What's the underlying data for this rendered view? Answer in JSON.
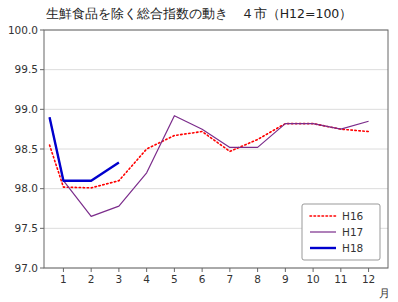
{
  "chart_data": {
    "type": "line",
    "title": "生鮮食品を除く総合指数の動き　４市（H12=100）",
    "x_label": "月",
    "x": [
      0.5,
      1,
      2,
      3,
      4,
      5,
      6,
      7,
      8,
      9,
      10,
      11,
      12
    ],
    "series": [
      {
        "name": "H16",
        "color": "#ff0000",
        "line_style": "dotted",
        "values": [
          98.55,
          98.02,
          98.01,
          98.1,
          98.5,
          98.67,
          98.72,
          98.47,
          98.62,
          98.82,
          98.82,
          98.75,
          98.72
        ]
      },
      {
        "name": "H17",
        "color": "#7b2c8b",
        "line_style": "solid",
        "values": [
          98.9,
          98.1,
          97.65,
          97.78,
          98.2,
          98.92,
          98.75,
          98.52,
          98.52,
          98.82,
          98.82,
          98.75,
          98.85
        ]
      },
      {
        "name": "H18",
        "color": "#0000cd",
        "line_style": "solid",
        "values": [
          98.9,
          98.1,
          98.1,
          98.33,
          null,
          null,
          null,
          null,
          null,
          null,
          null,
          null,
          null
        ]
      }
    ],
    "xlim": [
      0.3,
      12.7
    ],
    "xticks": [
      1,
      2,
      3,
      4,
      5,
      6,
      7,
      8,
      9,
      10,
      11,
      12
    ],
    "ylim": [
      97.0,
      100.0
    ],
    "yticks": [
      {
        "value": 97.0,
        "label": "97.0"
      },
      97.5,
      {
        "value": 98.0,
        "label": "98.0"
      },
      98.5,
      {
        "value": 99.0,
        "label": "99.0"
      },
      99.5,
      {
        "value": 100.0,
        "label": "100.0"
      }
    ],
    "grid": "y",
    "legend": "lower right"
  }
}
